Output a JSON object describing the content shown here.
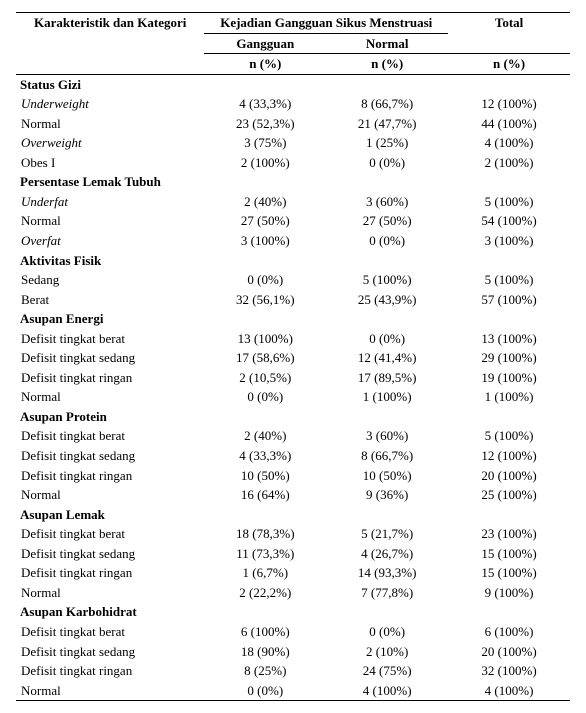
{
  "header": {
    "leftLabel": "Karakteristik dan Kategori",
    "span2": "Kejadian Gangguan Sikus Menstruasi",
    "gangguan": "Gangguan",
    "normal": "Normal",
    "total": "Total",
    "npct": "n (%)"
  },
  "groups": [
    {
      "title": "Status Gizi",
      "bold": true,
      "italic": false,
      "rows": [
        {
          "label": "Underweight",
          "italic": true,
          "g": "4 (33,3%)",
          "n": "8 (66,7%)",
          "t": "12 (100%)"
        },
        {
          "label": "Normal",
          "italic": false,
          "g": "23 (52,3%)",
          "n": "21 (47,7%)",
          "t": "44 (100%)"
        },
        {
          "label": "Overweight",
          "italic": true,
          "g": "3 (75%)",
          "n": "1 (25%)",
          "t": "4 (100%)"
        },
        {
          "label": "Obes I",
          "italic": false,
          "g": "2 (100%)",
          "n": "0 (0%)",
          "t": "2 (100%)"
        }
      ]
    },
    {
      "title": "Persentase Lemak Tubuh",
      "bold": true,
      "italic": false,
      "rows": [
        {
          "label": "Underfat",
          "italic": true,
          "g": "2 (40%)",
          "n": "3 (60%)",
          "t": "5 (100%)"
        },
        {
          "label": "Normal",
          "italic": false,
          "g": "27 (50%)",
          "n": "27 (50%)",
          "t": "54 (100%)"
        },
        {
          "label": "Overfat",
          "italic": true,
          "g": "3 (100%)",
          "n": "0 (0%)",
          "t": "3 (100%)"
        }
      ]
    },
    {
      "title": "Aktivitas Fisik",
      "bold": true,
      "italic": false,
      "rows": [
        {
          "label": "Sedang",
          "italic": false,
          "g": "0 (0%)",
          "n": "5 (100%)",
          "t": "5 (100%)"
        },
        {
          "label": "Berat",
          "italic": false,
          "g": "32 (56,1%)",
          "n": "25 (43,9%)",
          "t": "57 (100%)"
        }
      ]
    },
    {
      "title": "Asupan Energi",
      "bold": true,
      "italic": false,
      "rows": [
        {
          "label": "Defisit tingkat berat",
          "italic": false,
          "g": "13 (100%)",
          "n": "0 (0%)",
          "t": "13 (100%)"
        },
        {
          "label": "Defisit tingkat sedang",
          "italic": false,
          "g": "17 (58,6%)",
          "n": "12 (41,4%)",
          "t": "29 (100%)"
        },
        {
          "label": "Defisit tingkat ringan",
          "italic": false,
          "g": "2 (10,5%)",
          "n": "17 (89,5%)",
          "t": "19 (100%)"
        },
        {
          "label": "Normal",
          "italic": false,
          "g": "0 (0%)",
          "n": "1 (100%)",
          "t": "1 (100%)"
        }
      ]
    },
    {
      "title": "Asupan Protein",
      "bold": true,
      "italic": false,
      "rows": [
        {
          "label": "Defisit tingkat berat",
          "italic": false,
          "g": "2 (40%)",
          "n": "3 (60%)",
          "t": "5 (100%)"
        },
        {
          "label": "Defisit tingkat sedang",
          "italic": false,
          "g": "4 (33,3%)",
          "n": "8 (66,7%)",
          "t": "12 (100%)"
        },
        {
          "label": "Defisit tingkat ringan",
          "italic": false,
          "g": "10 (50%)",
          "n": "10 (50%)",
          "t": "20 (100%)"
        },
        {
          "label": "Normal",
          "italic": false,
          "g": "16 (64%)",
          "n": "9 (36%)",
          "t": "25 (100%)"
        }
      ]
    },
    {
      "title": "Asupan Lemak",
      "bold": true,
      "italic": false,
      "rows": [
        {
          "label": "Defisit tingkat berat",
          "italic": false,
          "g": "18 (78,3%)",
          "n": "5 (21,7%)",
          "t": "23 (100%)"
        },
        {
          "label": "Defisit tingkat sedang",
          "italic": false,
          "g": "11 (73,3%)",
          "n": "4 (26,7%)",
          "t": "15 (100%)"
        },
        {
          "label": "Defisit tingkat ringan",
          "italic": false,
          "g": "1 (6,7%)",
          "n": "14 (93,3%)",
          "t": "15 (100%)"
        },
        {
          "label": "Normal",
          "italic": false,
          "g": "2 (22,2%)",
          "n": "7 (77,8%)",
          "t": "9 (100%)"
        }
      ]
    },
    {
      "title": "Asupan Karbohidrat",
      "bold": true,
      "italic": false,
      "rows": [
        {
          "label": "Defisit tingkat berat",
          "italic": false,
          "g": "6 (100%)",
          "n": "0 (0%)",
          "t": "6 (100%)"
        },
        {
          "label": "Defisit tingkat sedang",
          "italic": false,
          "g": "18 (90%)",
          "n": "2 (10%)",
          "t": "20 (100%)"
        },
        {
          "label": "Defisit tingkat ringan",
          "italic": false,
          "g": "8 (25%)",
          "n": "24 (75%)",
          "t": "32 (100%)"
        },
        {
          "label": "Normal",
          "italic": false,
          "g": "0 (0%)",
          "n": "4 (100%)",
          "t": "4 (100%)"
        }
      ]
    }
  ]
}
